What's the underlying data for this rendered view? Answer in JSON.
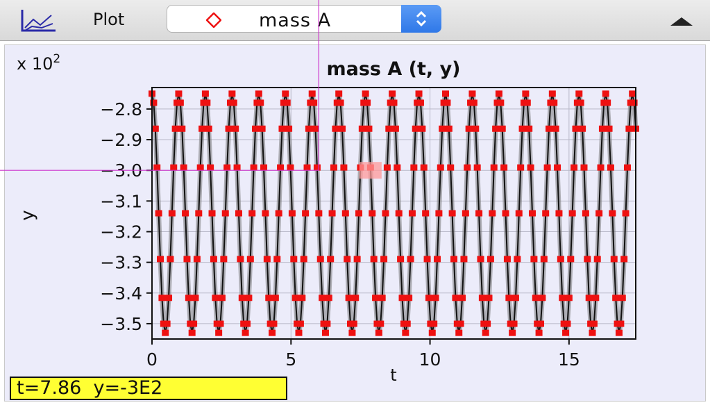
{
  "toolbar": {
    "plot_icon": "plot-axes-icon",
    "plot_label": "Plot",
    "selector": {
      "marker_icon": "red-diamond-icon",
      "value": "mass A",
      "arrow_icon": "up-down-chevron-icon"
    },
    "collapse_icon": "triangle-up-icon"
  },
  "readout": "t=7.86  y=-3E2",
  "colors": {
    "marker": "#ee1111",
    "line": "#111111",
    "accent": "#2f78e8",
    "readout_bg": "#ffff33",
    "crosshair": "#cc33cc"
  },
  "chart_data": {
    "type": "scatter",
    "title": "mass A (t, y)",
    "xlabel": "t",
    "ylabel": "y",
    "exponent_label": "x 10",
    "exponent_power": "2",
    "x_ticks": [
      {
        "value": 0,
        "label": "0"
      },
      {
        "value": 5,
        "label": "5"
      },
      {
        "value": 10,
        "label": "10"
      },
      {
        "value": 15,
        "label": "15"
      }
    ],
    "y_ticks": [
      {
        "value": -2.8,
        "label": "−2.8"
      },
      {
        "value": -2.9,
        "label": "−2.9"
      },
      {
        "value": -3.0,
        "label": "−3.0"
      },
      {
        "value": -3.1,
        "label": "−3.1"
      },
      {
        "value": -3.2,
        "label": "−3.2"
      },
      {
        "value": -3.3,
        "label": "−3.3"
      },
      {
        "value": -3.4,
        "label": "−3.4"
      },
      {
        "value": -3.5,
        "label": "−3.5"
      }
    ],
    "xlim": [
      0,
      17.4
    ],
    "ylim": [
      -3.55,
      -2.73
    ],
    "grid": true,
    "series": [
      {
        "style": "line+markers",
        "oscillation": {
          "center": -3.14,
          "amplitude": 0.39,
          "period": 0.96,
          "t_start": 0,
          "t_end": 17.4,
          "sample_step": 0.06
        }
      }
    ],
    "highlight_point": {
      "t": 7.86,
      "y": -3.0
    },
    "crosshair": {
      "t": 6.0,
      "y": -3.0
    }
  }
}
